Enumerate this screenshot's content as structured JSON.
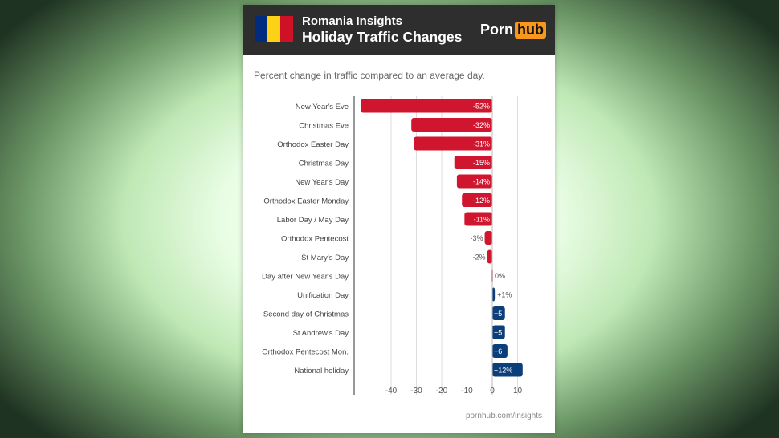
{
  "header": {
    "title_line1": "Romania Insights",
    "title_line2": "Holiday Traffic Changes",
    "logo_left": "Porn",
    "logo_right": "hub",
    "flag_colors": [
      "#002b7f",
      "#fcd116",
      "#ce1126"
    ]
  },
  "subtitle": "Percent change in traffic compared to an average day.",
  "footer": "pornhub.com/insights",
  "colors": {
    "negative": "#d0152e",
    "positive": "#0b3f7a",
    "zero": "#e58a94"
  },
  "chart_data": {
    "type": "bar",
    "orientation": "horizontal",
    "title": "Holiday Traffic Changes",
    "xlabel": "",
    "ylabel": "",
    "xlim": [
      -52,
      12
    ],
    "x_ticks": [
      -40,
      -30,
      -20,
      -10,
      0,
      10
    ],
    "grid": true,
    "categories": [
      "New Year's Eve",
      "Christmas Eve",
      "Orthodox Easter Day",
      "Christmas Day",
      "New Year's Day",
      "Orthodox Easter Monday",
      "Labor Day / May Day",
      "Orthodox Pentecost",
      "St Mary's Day",
      "Day after New Year's Day",
      "Unification Day",
      "Second day of Christmas",
      "St Andrew's Day",
      "Orthodox Pentecost Mon.",
      "National holiday"
    ],
    "values": [
      -52,
      -32,
      -31,
      -15,
      -14,
      -12,
      -11,
      -3,
      -2,
      0,
      1,
      5,
      5,
      6,
      12
    ],
    "labels": [
      "-52%",
      "-32%",
      "-31%",
      "-15%",
      "-14%",
      "-12%",
      "-11%",
      "-3%",
      "-2%",
      "0%",
      "+1%",
      "+5",
      "+5",
      "+6",
      "+12%"
    ]
  }
}
